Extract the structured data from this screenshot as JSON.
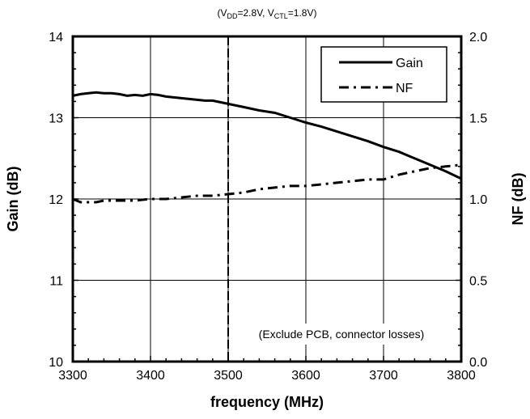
{
  "chart_data": {
    "type": "line",
    "condition": {
      "prefix": "(V",
      "vdd_sub": "DD",
      "vdd_value": "=2.8V, V",
      "vctl_sub": "CTL",
      "vctl_value": "=1.8V)"
    },
    "xlabel": "frequency (MHz)",
    "ylabel": "Gain (dB)",
    "y2label": "NF (dB)",
    "xlim": [
      3300,
      3800
    ],
    "ylim": [
      10,
      14
    ],
    "y2lim": [
      0.0,
      2.0
    ],
    "xticks": [
      "3300",
      "3400",
      "3500",
      "3600",
      "3700",
      "3800"
    ],
    "yticks": [
      "10",
      "11",
      "12",
      "13",
      "14"
    ],
    "y2ticks": [
      "0.0",
      "0.5",
      "1.0",
      "1.5",
      "2.0"
    ],
    "grid": true,
    "legend_position": "top-right",
    "marker_line_x": 3500,
    "annotation": "(Exclude PCB, connector losses)",
    "series": [
      {
        "name": "Gain",
        "axis": "left",
        "style": "solid",
        "x": [
          3300,
          3310,
          3320,
          3330,
          3340,
          3350,
          3360,
          3370,
          3380,
          3390,
          3400,
          3410,
          3420,
          3430,
          3440,
          3450,
          3460,
          3470,
          3480,
          3490,
          3500,
          3520,
          3540,
          3560,
          3580,
          3600,
          3620,
          3640,
          3660,
          3680,
          3700,
          3720,
          3740,
          3760,
          3780,
          3800
        ],
        "values": [
          13.27,
          13.29,
          13.3,
          13.31,
          13.3,
          13.3,
          13.29,
          13.27,
          13.28,
          13.27,
          13.29,
          13.28,
          13.26,
          13.25,
          13.24,
          13.23,
          13.22,
          13.21,
          13.21,
          13.19,
          13.17,
          13.13,
          13.09,
          13.06,
          13.0,
          12.94,
          12.89,
          12.83,
          12.77,
          12.71,
          12.64,
          12.58,
          12.5,
          12.42,
          12.34,
          12.25
        ]
      },
      {
        "name": "NF",
        "axis": "right",
        "style": "dash-dot",
        "x": [
          3300,
          3310,
          3320,
          3330,
          3340,
          3350,
          3360,
          3380,
          3400,
          3420,
          3440,
          3460,
          3480,
          3500,
          3520,
          3540,
          3560,
          3580,
          3600,
          3620,
          3640,
          3660,
          3680,
          3700,
          3720,
          3740,
          3760,
          3780,
          3800
        ],
        "values": [
          1.0,
          0.98,
          0.98,
          0.98,
          0.99,
          0.99,
          0.99,
          0.99,
          1.0,
          1.0,
          1.01,
          1.02,
          1.02,
          1.03,
          1.04,
          1.06,
          1.07,
          1.08,
          1.08,
          1.09,
          1.1,
          1.11,
          1.12,
          1.12,
          1.15,
          1.17,
          1.19,
          1.2,
          1.21
        ]
      }
    ]
  }
}
